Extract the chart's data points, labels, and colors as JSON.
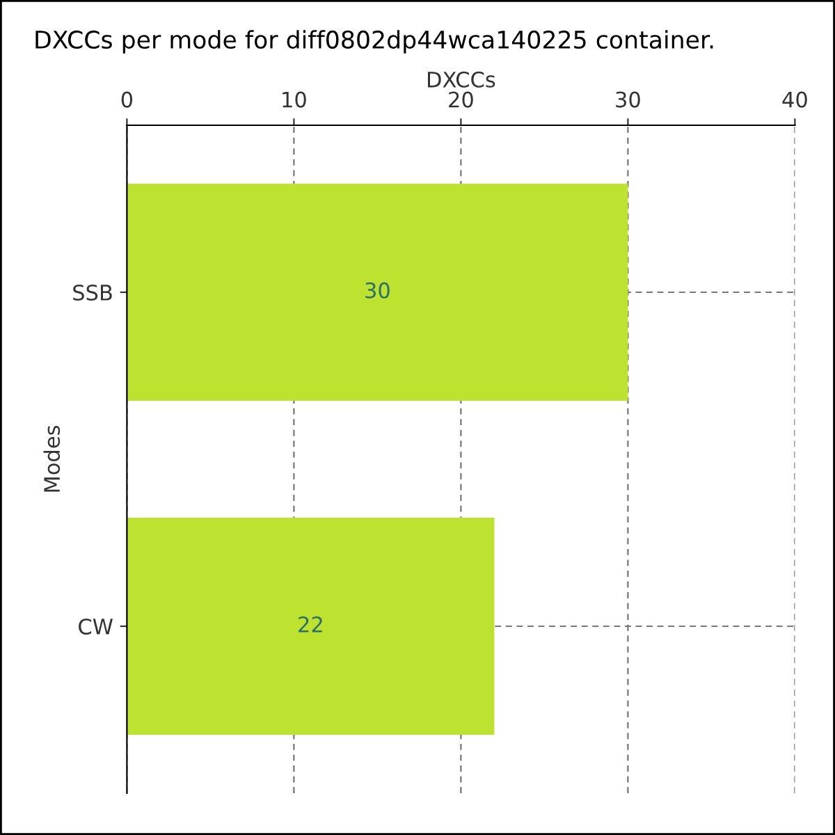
{
  "chart_data": {
    "type": "bar",
    "orientation": "horizontal",
    "title": "DXCCs per mode for diff0802dp44wca140225 container.",
    "xlabel": "DXCCs",
    "ylabel": "Modes",
    "categories": [
      "SSB",
      "CW"
    ],
    "values": [
      30,
      22
    ],
    "color": "#bde22f",
    "xlim": [
      0,
      40
    ],
    "xticks": [
      0,
      10,
      20,
      30,
      40
    ],
    "grid": true,
    "data_labels": true
  }
}
